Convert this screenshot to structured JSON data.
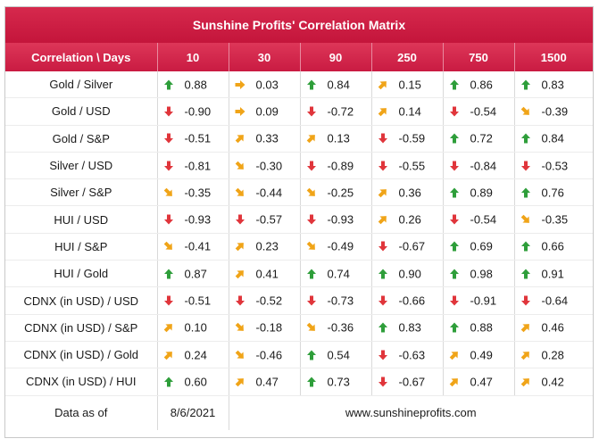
{
  "title": "Sunshine Profits' Correlation Matrix",
  "header": {
    "corner": "Correlation \\ Days",
    "days": [
      "10",
      "30",
      "90",
      "250",
      "750",
      "1500"
    ]
  },
  "colors": {
    "up": "#2e9e3a",
    "side": "#f0a418",
    "down": "#e0353b",
    "header": "#cf2147"
  },
  "chart_data": {
    "type": "table",
    "columns": [
      "10",
      "30",
      "90",
      "250",
      "750",
      "1500"
    ],
    "rows": [
      {
        "label": "Gold / Silver",
        "values": [
          "0.88",
          "0.03",
          "0.84",
          "0.15",
          "0.86",
          "0.83"
        ],
        "arrows": [
          "up",
          "right",
          "up",
          "up-right",
          "up",
          "up"
        ]
      },
      {
        "label": "Gold / USD",
        "values": [
          "-0.90",
          "0.09",
          "-0.72",
          "0.14",
          "-0.54",
          "-0.39"
        ],
        "arrows": [
          "down",
          "right",
          "down",
          "up-right",
          "down",
          "down-right"
        ]
      },
      {
        "label": "Gold / S&P",
        "values": [
          "-0.51",
          "0.33",
          "0.13",
          "-0.59",
          "0.72",
          "0.84"
        ],
        "arrows": [
          "down",
          "up-right",
          "up-right",
          "down",
          "up",
          "up"
        ]
      },
      {
        "label": "Silver / USD",
        "values": [
          "-0.81",
          "-0.30",
          "-0.89",
          "-0.55",
          "-0.84",
          "-0.53"
        ],
        "arrows": [
          "down",
          "down-right",
          "down",
          "down",
          "down",
          "down"
        ]
      },
      {
        "label": "Silver / S&P",
        "values": [
          "-0.35",
          "-0.44",
          "-0.25",
          "0.36",
          "0.89",
          "0.76"
        ],
        "arrows": [
          "down-right",
          "down-right",
          "down-right",
          "up-right",
          "up",
          "up"
        ]
      },
      {
        "label": "HUI / USD",
        "values": [
          "-0.93",
          "-0.57",
          "-0.93",
          "0.26",
          "-0.54",
          "-0.35"
        ],
        "arrows": [
          "down",
          "down",
          "down",
          "up-right",
          "down",
          "down-right"
        ]
      },
      {
        "label": "HUI / S&P",
        "values": [
          "-0.41",
          "0.23",
          "-0.49",
          "-0.67",
          "0.69",
          "0.66"
        ],
        "arrows": [
          "down-right",
          "up-right",
          "down-right",
          "down",
          "up",
          "up"
        ]
      },
      {
        "label": "HUI / Gold",
        "values": [
          "0.87",
          "0.41",
          "0.74",
          "0.90",
          "0.98",
          "0.91"
        ],
        "arrows": [
          "up",
          "up-right",
          "up",
          "up",
          "up",
          "up"
        ]
      },
      {
        "label": "CDNX (in USD) / USD",
        "values": [
          "-0.51",
          "-0.52",
          "-0.73",
          "-0.66",
          "-0.91",
          "-0.64"
        ],
        "arrows": [
          "down",
          "down",
          "down",
          "down",
          "down",
          "down"
        ]
      },
      {
        "label": "CDNX (in USD) / S&P",
        "values": [
          "0.10",
          "-0.18",
          "-0.36",
          "0.83",
          "0.88",
          "0.46"
        ],
        "arrows": [
          "up-right",
          "down-right",
          "down-right",
          "up",
          "up",
          "up-right"
        ]
      },
      {
        "label": "CDNX (in USD) / Gold",
        "values": [
          "0.24",
          "-0.46",
          "0.54",
          "-0.63",
          "0.49",
          "0.28"
        ],
        "arrows": [
          "up-right",
          "down-right",
          "up",
          "down",
          "up-right",
          "up-right"
        ]
      },
      {
        "label": "CDNX (in USD) / HUI",
        "values": [
          "0.60",
          "0.47",
          "0.73",
          "-0.67",
          "0.47",
          "0.42"
        ],
        "arrows": [
          "up",
          "up-right",
          "up",
          "down",
          "up-right",
          "up-right"
        ]
      }
    ]
  },
  "footer": {
    "label": "Data as of",
    "date": "8/6/2021",
    "website": "www.sunshineprofits.com"
  }
}
